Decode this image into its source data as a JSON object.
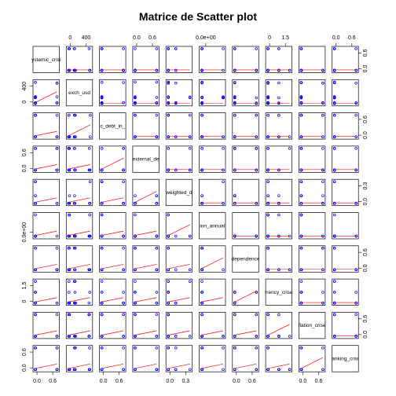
{
  "chart_data": {
    "type": "scatter",
    "title": "Matrice de Scatter plot",
    "variables": [
      "systemic_crisis",
      "exch_usd",
      "domestic_debt_in_default",
      "sovereign_external_debt_default",
      "gdp_weighted_default",
      "inflation_annual_cpi",
      "independence",
      "currency_crises",
      "inflation_crises",
      "banking_crisis"
    ],
    "diag_labels": [
      "ystemic_crisi",
      "exch_usd",
      "c_debt_in_",
      "external_de",
      "weighted_d",
      "ion_annual",
      "dependence",
      "rrency_crise",
      "flation_crise",
      "anking_crisi"
    ],
    "top_ticks": [
      {
        "col": 1,
        "labels": [
          "0",
          "400"
        ]
      },
      {
        "col": 3,
        "labels": [
          "0.0",
          "0.6"
        ]
      },
      {
        "col": 5,
        "labels": [
          "0.0e+00"
        ]
      },
      {
        "col": 7,
        "labels": [
          "0",
          "1.5"
        ]
      },
      {
        "col": 9,
        "labels": [
          "0.0",
          "0.6"
        ]
      }
    ],
    "bottom_ticks": [
      {
        "col": 0,
        "labels": [
          "0.0",
          "0.6"
        ]
      },
      {
        "col": 2,
        "labels": [
          "0.0",
          "0.6"
        ]
      },
      {
        "col": 4,
        "labels": [
          "0.0",
          "0.3"
        ]
      },
      {
        "col": 6,
        "labels": [
          "0.0",
          "0.6"
        ]
      },
      {
        "col": 8,
        "labels": [
          "0.0",
          "0.6"
        ]
      }
    ],
    "left_ticks": [
      {
        "row": 1,
        "labels": [
          "0",
          "400"
        ]
      },
      {
        "row": 3,
        "labels": [
          "0.0",
          "0.6"
        ]
      },
      {
        "row": 5,
        "labels": [
          "0.0e+00"
        ]
      },
      {
        "row": 7,
        "labels": [
          "0",
          "1.5"
        ]
      },
      {
        "row": 9,
        "labels": [
          "0.0",
          "0.6"
        ]
      }
    ],
    "right_ticks": [
      {
        "row": 0,
        "labels": [
          "0.0",
          "0.6"
        ]
      },
      {
        "row": 2,
        "labels": [
          "0.0",
          "0.6"
        ]
      },
      {
        "row": 4,
        "labels": [
          "0.0",
          "0.3"
        ]
      },
      {
        "row": 6,
        "labels": [
          "0.0",
          "0.6"
        ]
      },
      {
        "row": 8,
        "labels": [
          "0.0",
          "0.6"
        ]
      }
    ],
    "point_color": "#0000ff",
    "smooth_color": "#ff0000",
    "grid": false
  }
}
